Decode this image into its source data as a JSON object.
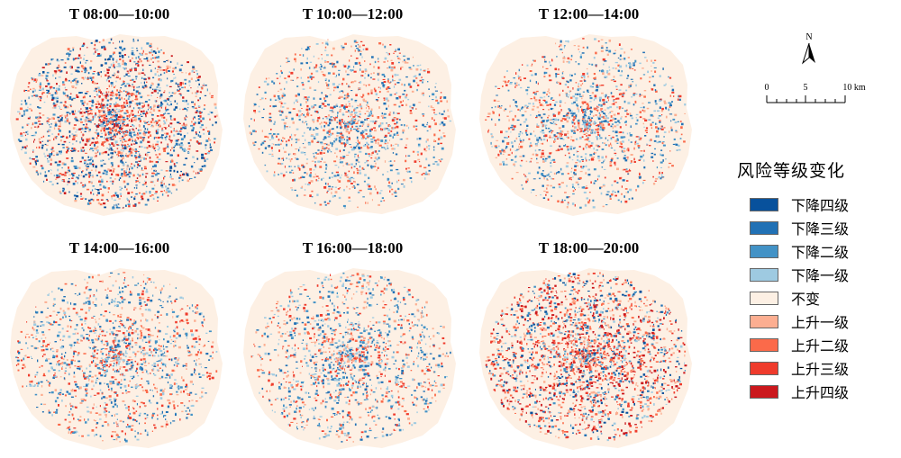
{
  "panels": [
    {
      "title": "T 08:00—10:00",
      "mode": "mixed_strong"
    },
    {
      "title": "T 10:00—12:00",
      "mode": "mixed_light"
    },
    {
      "title": "T 12:00—14:00",
      "mode": "mixed_light"
    },
    {
      "title": "T 14:00—16:00",
      "mode": "mixed_light"
    },
    {
      "title": "T 16:00—18:00",
      "mode": "mixed_light"
    },
    {
      "title": "T 18:00—20:00",
      "mode": "rise_strong"
    }
  ],
  "north_arrow": {
    "label": "N"
  },
  "scale_bar": {
    "ticks": [
      "0",
      "5",
      "10 km"
    ]
  },
  "legend": {
    "title": "风险等级变化",
    "items": [
      {
        "label": "下降四级",
        "color": "#08519c"
      },
      {
        "label": "下降三级",
        "color": "#2171b5"
      },
      {
        "label": "下降二级",
        "color": "#4292c6"
      },
      {
        "label": "下降一级",
        "color": "#9ecae1"
      },
      {
        "label": "不变",
        "color": "#fdf0e4"
      },
      {
        "label": "上升一级",
        "color": "#fcae91"
      },
      {
        "label": "上升二级",
        "color": "#fb6a4a"
      },
      {
        "label": "上升三级",
        "color": "#ef3b2c"
      },
      {
        "label": "上升四级",
        "color": "#cb181d"
      }
    ]
  }
}
